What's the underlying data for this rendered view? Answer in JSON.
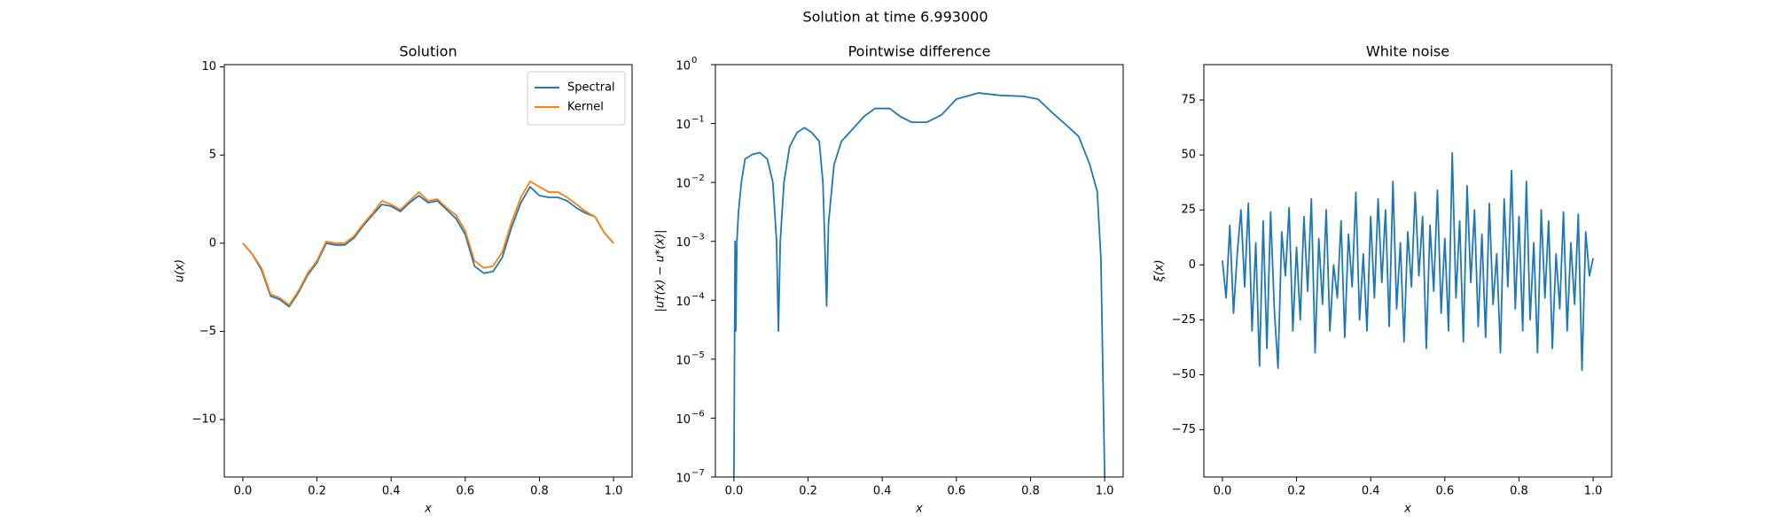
{
  "title": "Solution at time 6.993000",
  "chart_data": [
    {
      "type": "line",
      "title": "Solution",
      "xlabel": "x",
      "ylabel": "u(x)",
      "x": [
        0,
        0.025,
        0.05,
        0.075,
        0.1,
        0.125,
        0.15,
        0.175,
        0.2,
        0.225,
        0.25,
        0.275,
        0.3,
        0.325,
        0.35,
        0.375,
        0.4,
        0.425,
        0.45,
        0.475,
        0.5,
        0.525,
        0.55,
        0.575,
        0.6,
        0.625,
        0.65,
        0.675,
        0.7,
        0.725,
        0.75,
        0.775,
        0.8,
        0.825,
        0.85,
        0.875,
        0.9,
        0.925,
        0.95,
        0.975,
        1
      ],
      "series": [
        {
          "name": "Spectral",
          "color": "#1f77b4",
          "values": [
            0,
            -0.6,
            -1.5,
            -3.0,
            -3.2,
            -3.6,
            -2.8,
            -1.8,
            -1.1,
            0.0,
            -0.1,
            -0.1,
            0.3,
            1.0,
            1.6,
            2.2,
            2.1,
            1.8,
            2.3,
            2.7,
            2.3,
            2.4,
            1.9,
            1.4,
            0.5,
            -1.3,
            -1.7,
            -1.6,
            -0.8,
            0.9,
            2.3,
            3.2,
            2.7,
            2.6,
            2.6,
            2.4,
            2.0,
            1.7,
            1.5,
            0.6,
            0
          ]
        },
        {
          "name": "Kernel",
          "color": "#ff7f0e",
          "values": [
            0,
            -0.6,
            -1.4,
            -2.9,
            -3.1,
            -3.5,
            -2.7,
            -1.7,
            -1.0,
            0.1,
            0.0,
            0.0,
            0.4,
            1.1,
            1.7,
            2.4,
            2.2,
            1.9,
            2.4,
            2.9,
            2.4,
            2.5,
            2.0,
            1.6,
            0.7,
            -1.0,
            -1.4,
            -1.3,
            -0.5,
            1.2,
            2.6,
            3.5,
            3.2,
            2.9,
            2.9,
            2.6,
            2.2,
            1.8,
            1.5,
            0.6,
            0
          ]
        }
      ],
      "xlim": [
        -0.05,
        1.05
      ],
      "ylim": [
        -13.26,
        10.13
      ],
      "xticks": [
        {
          "value": 0,
          "label": "0.0"
        },
        {
          "value": 0.2,
          "label": "0.2"
        },
        {
          "value": 0.4,
          "label": "0.4"
        },
        {
          "value": 0.6,
          "label": "0.6"
        },
        {
          "value": 0.8,
          "label": "0.8"
        },
        {
          "value": 1,
          "label": "1.0"
        }
      ],
      "yticks": [
        10,
        5,
        0,
        {
          "value": -5,
          "label": "−5"
        },
        {
          "value": -10,
          "label": "−10"
        }
      ],
      "legend": "upper right"
    },
    {
      "type": "line",
      "title": "Pointwise difference",
      "xlabel": "x",
      "ylabel": "|u†(x) − u*(x)|",
      "yscale": "log",
      "x": [
        0,
        0.003,
        0.005,
        0.008,
        0.012,
        0.02,
        0.03,
        0.05,
        0.07,
        0.09,
        0.105,
        0.115,
        0.12,
        0.125,
        0.135,
        0.15,
        0.17,
        0.19,
        0.21,
        0.23,
        0.24,
        0.245,
        0.25,
        0.255,
        0.27,
        0.29,
        0.32,
        0.35,
        0.38,
        0.42,
        0.45,
        0.48,
        0.52,
        0.56,
        0.6,
        0.66,
        0.72,
        0.78,
        0.82,
        0.86,
        0.9,
        0.93,
        0.96,
        0.98,
        0.99,
        1
      ],
      "series": [
        {
          "name": "Pointwise difference",
          "color": "#1f77b4",
          "values": [
            1e-07,
            0.001,
            3e-05,
            0.001,
            0.003,
            0.01,
            0.025,
            0.03,
            0.032,
            0.025,
            0.01,
            0.001,
            3e-05,
            0.001,
            0.01,
            0.04,
            0.07,
            0.085,
            0.07,
            0.05,
            0.01,
            0.001,
            8e-05,
            0.002,
            0.02,
            0.05,
            0.08,
            0.13,
            0.18,
            0.18,
            0.13,
            0.105,
            0.105,
            0.14,
            0.26,
            0.33,
            0.3,
            0.29,
            0.26,
            0.15,
            0.09,
            0.06,
            0.02,
            0.007,
            0.0005,
            1e-07
          ]
        }
      ],
      "xlim": [
        -0.05,
        1.05
      ],
      "ylim": [
        1e-07,
        1
      ],
      "xticks": [
        {
          "value": 0,
          "label": "0.0"
        },
        {
          "value": 0.2,
          "label": "0.2"
        },
        {
          "value": 0.4,
          "label": "0.4"
        },
        {
          "value": 0.6,
          "label": "0.6"
        },
        {
          "value": 0.8,
          "label": "0.8"
        },
        {
          "value": 1,
          "label": "1.0"
        }
      ],
      "yticks": [
        {
          "value": 1e-07,
          "label": "10",
          "exponent": "−7"
        },
        {
          "value": 1e-06,
          "label": "10",
          "exponent": "−6"
        },
        {
          "value": 1e-05,
          "label": "10",
          "exponent": "−5"
        },
        {
          "value": 0.0001,
          "label": "10",
          "exponent": "−4"
        },
        {
          "value": 0.001,
          "label": "10",
          "exponent": "−3"
        },
        {
          "value": 0.01,
          "label": "10",
          "exponent": "−2"
        },
        {
          "value": 0.1,
          "label": "10",
          "exponent": "−1"
        },
        {
          "value": 1,
          "label": "10",
          "exponent": "0"
        }
      ]
    },
    {
      "type": "line",
      "title": "White noise",
      "xlabel": "x",
      "ylabel": "ξ(x)",
      "x": [
        0,
        0.01,
        0.02,
        0.03,
        0.04,
        0.05,
        0.06,
        0.07,
        0.08,
        0.09,
        0.1,
        0.11,
        0.12,
        0.13,
        0.14,
        0.15,
        0.16,
        0.17,
        0.18,
        0.19,
        0.2,
        0.21,
        0.22,
        0.23,
        0.24,
        0.25,
        0.26,
        0.27,
        0.28,
        0.29,
        0.3,
        0.31,
        0.32,
        0.33,
        0.34,
        0.35,
        0.36,
        0.37,
        0.38,
        0.39,
        0.4,
        0.41,
        0.42,
        0.43,
        0.44,
        0.45,
        0.46,
        0.47,
        0.48,
        0.49,
        0.5,
        0.51,
        0.52,
        0.53,
        0.54,
        0.55,
        0.56,
        0.57,
        0.58,
        0.59,
        0.6,
        0.61,
        0.62,
        0.63,
        0.64,
        0.65,
        0.66,
        0.67,
        0.68,
        0.69,
        0.7,
        0.71,
        0.72,
        0.73,
        0.74,
        0.75,
        0.76,
        0.77,
        0.78,
        0.79,
        0.8,
        0.81,
        0.82,
        0.83,
        0.84,
        0.85,
        0.86,
        0.87,
        0.88,
        0.89,
        0.9,
        0.91,
        0.92,
        0.93,
        0.94,
        0.95,
        0.96,
        0.97,
        0.98,
        0.99,
        1
      ],
      "series": [
        {
          "name": "White noise",
          "color": "#1f77b4",
          "values": [
            2,
            -15,
            18,
            -22,
            5,
            25,
            -10,
            28,
            -30,
            10,
            -46,
            20,
            -38,
            24,
            -20,
            -47,
            15,
            -5,
            26,
            -30,
            8,
            -25,
            22,
            -12,
            30,
            -40,
            12,
            -18,
            25,
            -30,
            0,
            -15,
            20,
            -33,
            14,
            -10,
            33,
            -25,
            5,
            -30,
            22,
            -15,
            30,
            -8,
            25,
            -28,
            38,
            -20,
            10,
            -35,
            15,
            -10,
            33,
            -5,
            22,
            -38,
            18,
            -12,
            34,
            -22,
            12,
            -30,
            51,
            -15,
            20,
            -35,
            36,
            -8,
            25,
            -28,
            14,
            -33,
            28,
            -18,
            5,
            -40,
            30,
            -10,
            43,
            -20,
            22,
            -30,
            38,
            -25,
            10,
            -40,
            25,
            -15,
            20,
            -38,
            5,
            -20,
            24,
            -30,
            10,
            -18,
            23,
            -48,
            15,
            -5,
            3
          ]
        }
      ],
      "xlim": [
        -0.05,
        1.05
      ],
      "ylim": [
        -96.5,
        91.1
      ],
      "xticks": [
        {
          "value": 0,
          "label": "0.0"
        },
        {
          "value": 0.2,
          "label": "0.2"
        },
        {
          "value": 0.4,
          "label": "0.4"
        },
        {
          "value": 0.6,
          "label": "0.6"
        },
        {
          "value": 0.8,
          "label": "0.8"
        },
        {
          "value": 1,
          "label": "1.0"
        }
      ],
      "yticks": [
        75,
        50,
        25,
        0,
        {
          "value": -25,
          "label": "−25"
        },
        {
          "value": -50,
          "label": "−50"
        },
        {
          "value": -75,
          "label": "−75"
        }
      ]
    }
  ]
}
